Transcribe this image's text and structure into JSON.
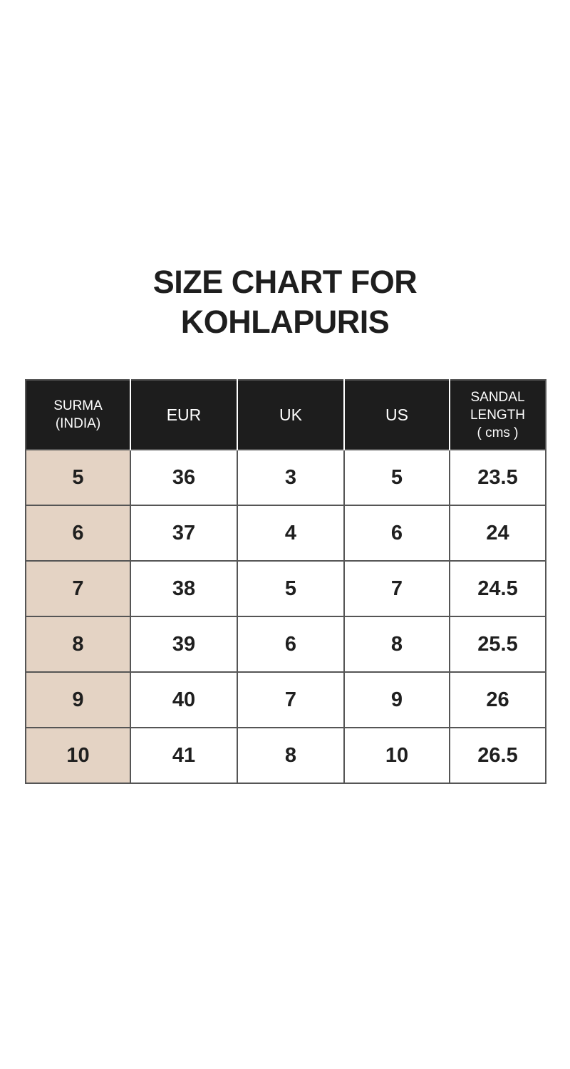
{
  "title": {
    "line1": "SIZE CHART FOR",
    "line2": "KOHLAPURIS"
  },
  "table": {
    "headers": {
      "surma": {
        "line1": "SURMA",
        "line2": "(INDIA)"
      },
      "eur": "EUR",
      "uk": "UK",
      "us": "US",
      "sandal": {
        "line1": "SANDAL",
        "line2": "LENGTH",
        "line3": "( cms )"
      }
    },
    "rows": [
      [
        "5",
        "36",
        "3",
        "5",
        "23.5"
      ],
      [
        "6",
        "37",
        "4",
        "6",
        "24"
      ],
      [
        "7",
        "38",
        "5",
        "7",
        "24.5"
      ],
      [
        "8",
        "39",
        "6",
        "8",
        "25.5"
      ],
      [
        "9",
        "40",
        "7",
        "9",
        "26"
      ],
      [
        "10",
        "41",
        "8",
        "10",
        "26.5"
      ]
    ]
  },
  "colors": {
    "header_bg": "#1d1d1d",
    "header_text": "#ffffff",
    "header_divider": "#ffffff",
    "india_column_bg": "#e4d3c4",
    "cell_bg": "#ffffff",
    "border": "#555555",
    "title_text": "#1e1e1e"
  },
  "chart_data": {
    "type": "table",
    "title": "SIZE CHART FOR KOHLAPURIS",
    "columns": [
      "SURMA (INDIA)",
      "EUR",
      "UK",
      "US",
      "SANDAL LENGTH ( cms )"
    ],
    "rows": [
      [
        "5",
        "36",
        "3",
        "5",
        "23.5"
      ],
      [
        "6",
        "37",
        "4",
        "6",
        "24"
      ],
      [
        "7",
        "38",
        "5",
        "7",
        "24.5"
      ],
      [
        "8",
        "39",
        "6",
        "8",
        "25.5"
      ],
      [
        "9",
        "40",
        "7",
        "9",
        "26"
      ],
      [
        "10",
        "41",
        "8",
        "10",
        "26.5"
      ]
    ]
  }
}
